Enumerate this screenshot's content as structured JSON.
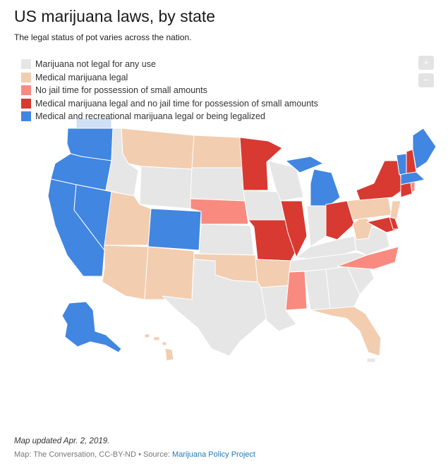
{
  "title": "US marijuana laws, by state",
  "subtitle": "The legal status of pot varies across the nation.",
  "legend": [
    {
      "label": "Marijuana not legal for any use",
      "color": "#e6e6e6"
    },
    {
      "label": "Medical marijuana legal",
      "color": "#f3cdb0"
    },
    {
      "label": "No jail time for possession of small amounts",
      "color": "#f98a7f"
    },
    {
      "label": "Medical marijuana legal and no jail time for possession of small amounts",
      "color": "#d83931"
    },
    {
      "label": "Medical and recreational marijuana legal or being legalized",
      "color": "#4186e0"
    }
  ],
  "zoom": {
    "in": "+",
    "out": "−"
  },
  "footer": {
    "updated": "Map updated Apr. 2, 2019.",
    "credit_prefix": "Map: The Conversation, CC-BY-ND • Source: ",
    "source_link": "Marijuana Policy Project"
  }
}
